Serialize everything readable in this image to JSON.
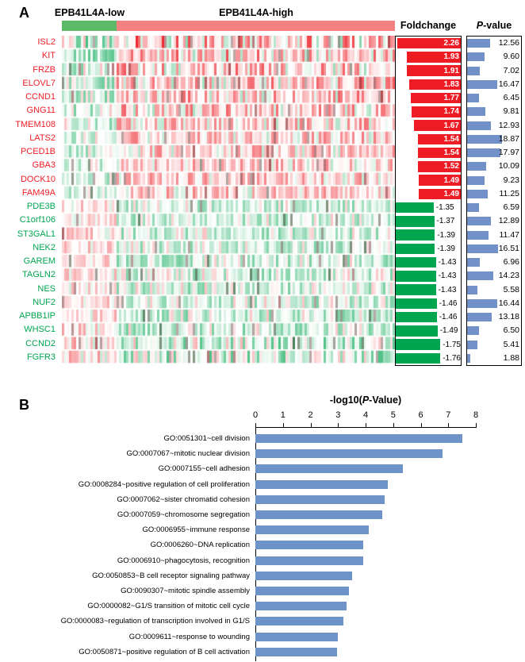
{
  "figure": {
    "panelA": {
      "label": "A",
      "group_low": "EPB41L4A-low",
      "group_high": "EPB41L4A-high",
      "foldchange_header": "Foldchange",
      "pvalue_header_italic": "P",
      "pvalue_header_rest": "-value"
    },
    "panelB": {
      "label": "B",
      "title_prefix": "-log10(",
      "title_italic": "P",
      "title_suffix": "-Value)"
    }
  },
  "colors": {
    "group_low_bar": "#5db968",
    "group_high_bar": "#f48181",
    "upregulated": "#ee1c25",
    "downregulated": "#00a550",
    "pvalue_bar": "#7191c8",
    "go_bar": "#6e93c8"
  },
  "chart_data": [
    {
      "type": "heatmap",
      "panel": "A",
      "groups": [
        {
          "label": "EPB41L4A-low",
          "fraction": 0.165
        },
        {
          "label": "EPB41L4A-high",
          "fraction": 0.835
        }
      ],
      "value_columns": [
        "Foldchange",
        "P-value"
      ],
      "foldchange_axis_max": 2.26,
      "pvalue_axis_max": 18.87,
      "rows": [
        {
          "gene": "ISL2",
          "foldchange": 2.26,
          "pvalue": 12.56
        },
        {
          "gene": "KIT",
          "foldchange": 1.93,
          "pvalue": 9.6
        },
        {
          "gene": "FRZB",
          "foldchange": 1.91,
          "pvalue": 7.02
        },
        {
          "gene": "ELOVL7",
          "foldchange": 1.83,
          "pvalue": 16.47
        },
        {
          "gene": "CCND1",
          "foldchange": 1.77,
          "pvalue": 6.45
        },
        {
          "gene": "GNG11",
          "foldchange": 1.74,
          "pvalue": 9.81
        },
        {
          "gene": "TMEM108",
          "foldchange": 1.67,
          "pvalue": 12.93
        },
        {
          "gene": "LATS2",
          "foldchange": 1.54,
          "pvalue": 18.87
        },
        {
          "gene": "PCED1B",
          "foldchange": 1.54,
          "pvalue": 17.97
        },
        {
          "gene": "GBA3",
          "foldchange": 1.52,
          "pvalue": 10.09
        },
        {
          "gene": "DOCK10",
          "foldchange": 1.49,
          "pvalue": 9.23
        },
        {
          "gene": "FAM49A",
          "foldchange": 1.49,
          "pvalue": 11.25
        },
        {
          "gene": "PDE3B",
          "foldchange": -1.35,
          "pvalue": 6.59
        },
        {
          "gene": "C1orf106",
          "foldchange": -1.37,
          "pvalue": 12.89
        },
        {
          "gene": "ST3GAL1",
          "foldchange": -1.39,
          "pvalue": 11.47
        },
        {
          "gene": "NEK2",
          "foldchange": -1.39,
          "pvalue": 16.51
        },
        {
          "gene": "GAREM",
          "foldchange": -1.43,
          "pvalue": 6.96
        },
        {
          "gene": "TAGLN2",
          "foldchange": -1.43,
          "pvalue": 14.23
        },
        {
          "gene": "NES",
          "foldchange": -1.43,
          "pvalue": 5.58
        },
        {
          "gene": "NUF2",
          "foldchange": -1.46,
          "pvalue": 16.44
        },
        {
          "gene": "APBB1IP",
          "foldchange": -1.46,
          "pvalue": 13.18
        },
        {
          "gene": "WHSC1",
          "foldchange": -1.49,
          "pvalue": 6.5
        },
        {
          "gene": "CCND2",
          "foldchange": -1.75,
          "pvalue": 5.41
        },
        {
          "gene": "FGFR3",
          "foldchange": -1.76,
          "pvalue": 1.88
        }
      ]
    },
    {
      "type": "bar",
      "panel": "B",
      "orientation": "horizontal",
      "title": "-log10(P-Value)",
      "xlim": [
        0,
        8
      ],
      "xticks": [
        0,
        1,
        2,
        3,
        4,
        5,
        6,
        7,
        8
      ],
      "legend": null,
      "grid": false,
      "categories": [
        "GO:0051301~cell division",
        "GO:0007067~mitotic nuclear division",
        "GO:0007155~cell adhesion",
        "GO:0008284~positive regulation of cell proliferation",
        "GO:0007062~sister chromatid cohesion",
        "GO:0007059~chromosome segregation",
        "GO:0006955~immune response",
        "GO:0006260~DNA replication",
        "GO:0006910~phagocytosis, recognition",
        "GO:0050853~B cell receptor signaling pathway",
        "GO:0090307~mitotic spindle assembly",
        "GO:0000082~G1/S transition of mitotic cell cycle",
        "GO:0000083~regulation of transcription involved in G1/S",
        "GO:0009611~response to wounding",
        "GO:0050871~positive regulation of B cell activation"
      ],
      "values": [
        7.5,
        6.8,
        5.35,
        4.8,
        4.7,
        4.6,
        4.1,
        3.9,
        3.9,
        3.5,
        3.4,
        3.3,
        3.2,
        3.0,
        2.95
      ]
    }
  ]
}
